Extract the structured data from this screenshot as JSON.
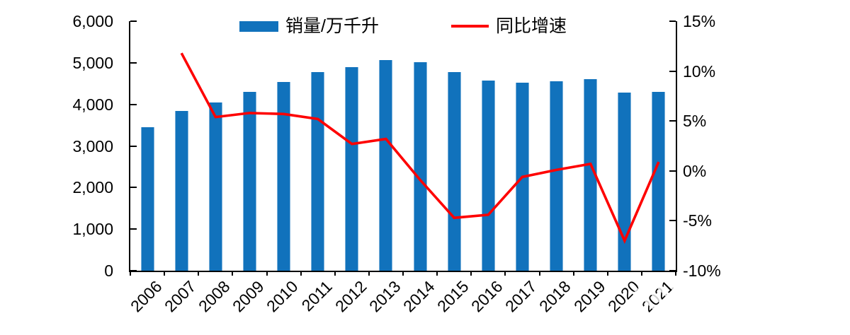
{
  "colors": {
    "bar_blue": "#1172BC",
    "line_red": "#FE0000",
    "axis_black": "#000000",
    "background": "#FFFFFF"
  },
  "chart_data": {
    "type": "combo_bar_line",
    "title": "",
    "grid": false,
    "legend_position": "top",
    "categories": [
      "2006",
      "2007",
      "2008",
      "2009",
      "2010",
      "2011",
      "2012",
      "2013",
      "2014",
      "2015",
      "2016",
      "2017",
      "2018",
      "2019",
      "2020",
      "2021"
    ],
    "series": [
      {
        "name": "销量/万千升",
        "type": "bar",
        "axis": "left",
        "color": "#1172BC",
        "values": [
          3450,
          3850,
          4050,
          4300,
          4540,
          4780,
          4900,
          5070,
          5010,
          4780,
          4570,
          4530,
          4560,
          4600,
          4290,
          4300
        ]
      },
      {
        "name": "同比增速",
        "type": "line",
        "axis": "right",
        "color": "#FE0000",
        "values": [
          null,
          11.8,
          5.4,
          5.8,
          5.7,
          5.2,
          2.7,
          3.2,
          -0.9,
          -4.7,
          -4.4,
          -0.6,
          0.1,
          0.7,
          -7.0,
          0.9
        ]
      }
    ],
    "left_axis": {
      "min": 0,
      "max": 6000,
      "tick_step": 1000,
      "tick_labels": [
        "6,000",
        "5,000",
        "4,000",
        "3,000",
        "2,000",
        "1,000",
        "0"
      ]
    },
    "right_axis": {
      "min": -10,
      "max": 15,
      "tick_step": 5,
      "tick_labels": [
        "15%",
        "10%",
        "5%",
        "0%",
        "-5%",
        "-10%"
      ]
    }
  }
}
